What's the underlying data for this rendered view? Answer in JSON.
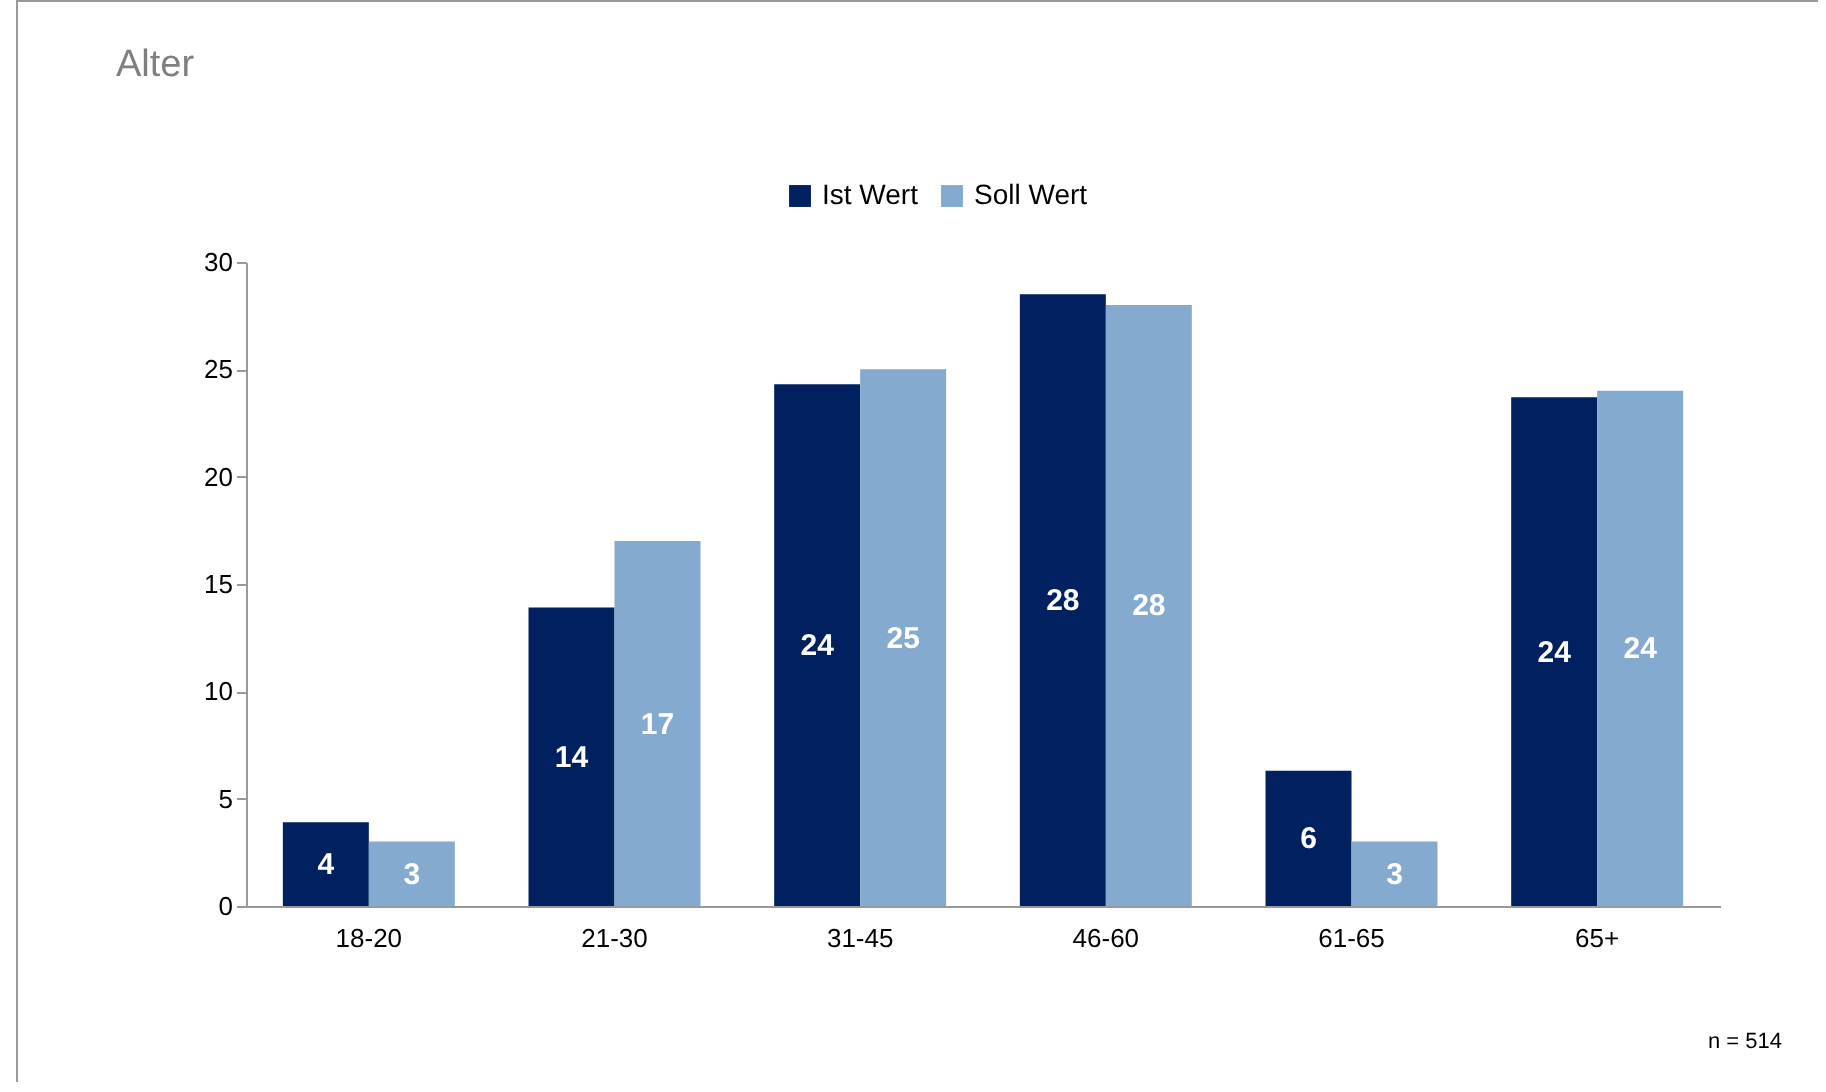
{
  "chart_data": {
    "type": "bar",
    "title": "Alter",
    "categories": [
      "18-20",
      "21-30",
      "31-45",
      "46-60",
      "61-65",
      "65+"
    ],
    "series": [
      {
        "name": "Ist Wert",
        "color": "#002060",
        "values": [
          3.9,
          13.9,
          24.3,
          28.5,
          6.3,
          23.7
        ],
        "value_labels": [
          "4",
          "14",
          "24",
          "28",
          "6",
          "24"
        ]
      },
      {
        "name": "Soll Wert",
        "color": "#84aad0",
        "values": [
          3,
          17,
          25,
          28,
          3,
          24
        ],
        "value_labels": [
          "3",
          "17",
          "25",
          "28",
          "3",
          "24"
        ]
      }
    ],
    "ylim": [
      0,
      30
    ],
    "yticks": [
      0,
      5,
      10,
      15,
      20,
      25,
      30
    ],
    "grid": false,
    "legend": "top",
    "annotations": [
      "n = 514"
    ]
  }
}
